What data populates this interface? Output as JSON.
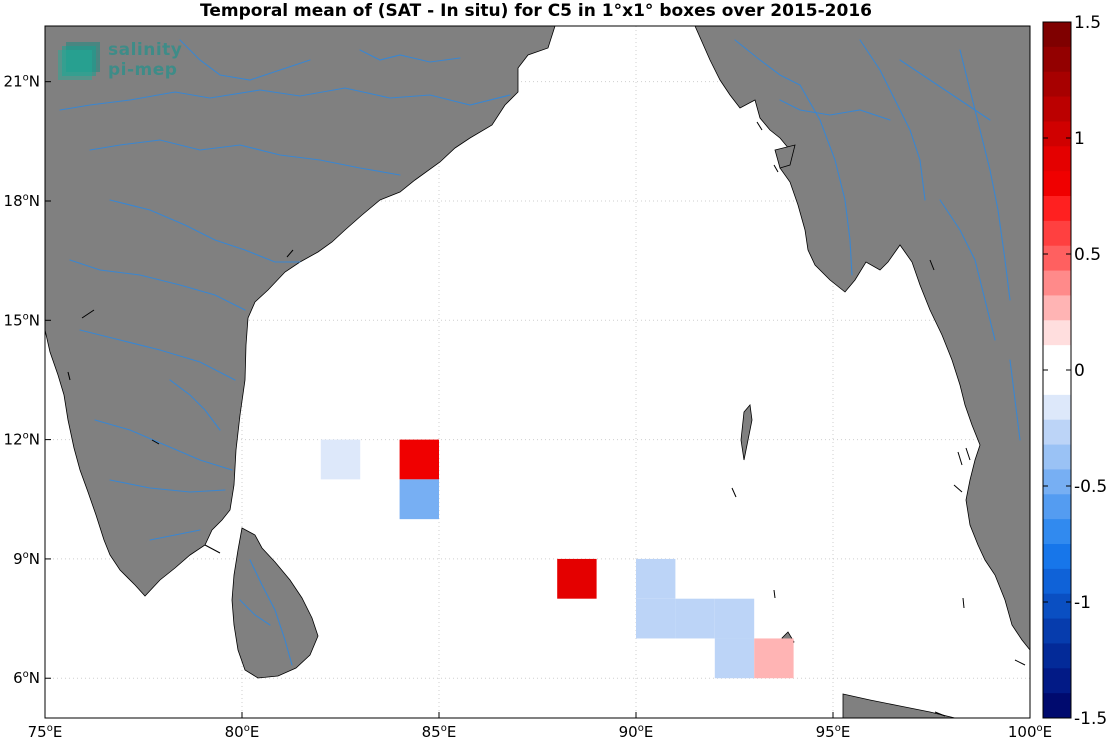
{
  "title": "Temporal mean of (SAT - In situ) for C5 in 1°x1° boxes over 2015-2016",
  "logo": {
    "line1": "salinity",
    "line2": "pi-mep"
  },
  "map": {
    "lon_range": [
      75,
      100
    ],
    "lat_range": [
      5,
      22.4
    ],
    "x_ticks": [
      {
        "value": 75,
        "label": "75",
        "hemi": "E"
      },
      {
        "value": 80,
        "label": "80",
        "hemi": "E"
      },
      {
        "value": 85,
        "label": "85",
        "hemi": "E"
      },
      {
        "value": 90,
        "label": "90",
        "hemi": "E"
      },
      {
        "value": 95,
        "label": "95",
        "hemi": "E"
      },
      {
        "value": 100,
        "label": "100",
        "hemi": "E"
      }
    ],
    "y_ticks": [
      {
        "value": 6,
        "label": "6",
        "hemi": "N"
      },
      {
        "value": 9,
        "label": "9",
        "hemi": "N"
      },
      {
        "value": 12,
        "label": "12",
        "hemi": "N"
      },
      {
        "value": 15,
        "label": "15",
        "hemi": "N"
      },
      {
        "value": 18,
        "label": "18",
        "hemi": "N"
      },
      {
        "value": 21,
        "label": "21",
        "hemi": "N"
      }
    ],
    "land_color": "#808080",
    "river_color": "#3a86d0",
    "grid": true
  },
  "chart_data": {
    "type": "heatmap",
    "title": "Temporal mean of (SAT - In situ) for C5 in 1°x1° boxes over 2015-2016",
    "cell_size_deg": 1,
    "cells": [
      {
        "lon": [
          82,
          83
        ],
        "lat": [
          11,
          12
        ],
        "value": -0.2
      },
      {
        "lon": [
          84,
          85
        ],
        "lat": [
          11,
          12
        ],
        "value": 0.8
      },
      {
        "lon": [
          84,
          85
        ],
        "lat": [
          10,
          11
        ],
        "value": -0.5
      },
      {
        "lon": [
          88,
          89
        ],
        "lat": [
          8,
          9
        ],
        "value": 0.9
      },
      {
        "lon": [
          90,
          91
        ],
        "lat": [
          8,
          9
        ],
        "value": -0.3
      },
      {
        "lon": [
          90,
          91
        ],
        "lat": [
          7,
          8
        ],
        "value": -0.3
      },
      {
        "lon": [
          91,
          92
        ],
        "lat": [
          7,
          8
        ],
        "value": -0.3
      },
      {
        "lon": [
          92,
          93
        ],
        "lat": [
          7,
          8
        ],
        "value": -0.3
      },
      {
        "lon": [
          92,
          93
        ],
        "lat": [
          6,
          7
        ],
        "value": -0.3
      },
      {
        "lon": [
          93,
          94
        ],
        "lat": [
          6,
          7
        ],
        "value": 0.3
      }
    ],
    "colorbar": {
      "range": [
        -1.5,
        1.5
      ],
      "ticks": [
        {
          "value": 1.5,
          "label": "1.5"
        },
        {
          "value": 1,
          "label": "1"
        },
        {
          "value": 0.5,
          "label": "0.5"
        },
        {
          "value": 0,
          "label": "0"
        },
        {
          "value": -0.5,
          "label": "-0.5"
        },
        {
          "value": -1,
          "label": "-1"
        },
        {
          "value": -1.5,
          "label": "-1.5"
        }
      ],
      "colors_top_to_bottom": [
        "#7f0000",
        "#930000",
        "#a70000",
        "#bb0000",
        "#d00000",
        "#e40000",
        "#f00000",
        "#ff2020",
        "#ff4040",
        "#ff6060",
        "#ff8a8a",
        "#ffb4b4",
        "#ffdede",
        "#ffffff",
        "#ffffff",
        "#dde8fa",
        "#bcd4f7",
        "#9ac2f5",
        "#77aff3",
        "#549cf1",
        "#318aef",
        "#1776ea",
        "#0f62d8",
        "#0a4fc2",
        "#063cad",
        "#032a98",
        "#021a86",
        "#000a6e"
      ]
    }
  }
}
